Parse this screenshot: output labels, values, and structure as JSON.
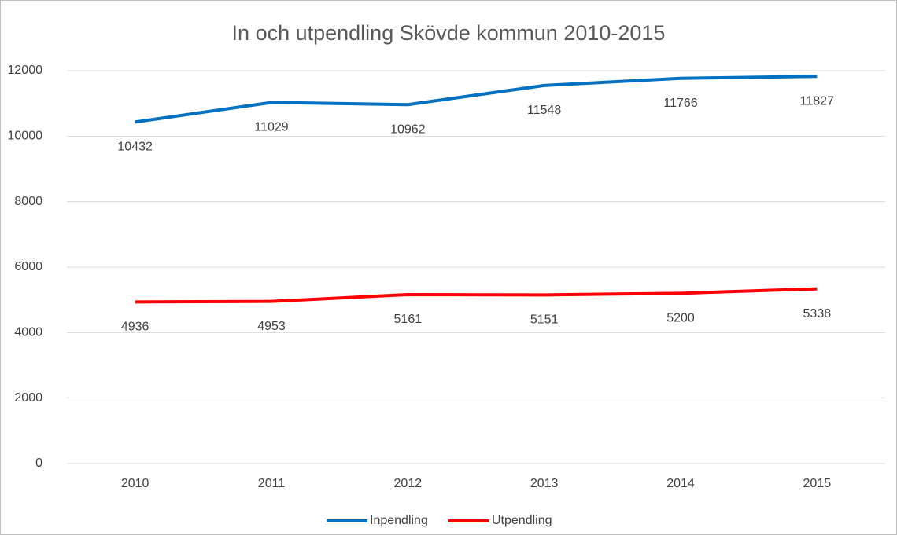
{
  "chart_data": {
    "type": "line",
    "title": "In och utpendling Skövde kommun 2010-2015",
    "categories": [
      "2010",
      "2011",
      "2012",
      "2013",
      "2014",
      "2015"
    ],
    "series": [
      {
        "name": "Inpendling",
        "color": "#0070c0",
        "values": [
          10432,
          11029,
          10962,
          11548,
          11766,
          11827
        ]
      },
      {
        "name": "Utpendling",
        "color": "#ff0000",
        "values": [
          4936,
          4953,
          5161,
          5151,
          5200,
          5338
        ]
      }
    ],
    "ylim": [
      0,
      12000
    ],
    "yticks": [
      0,
      2000,
      4000,
      6000,
      8000,
      10000,
      12000
    ],
    "grid": true,
    "legend": "bottom"
  }
}
